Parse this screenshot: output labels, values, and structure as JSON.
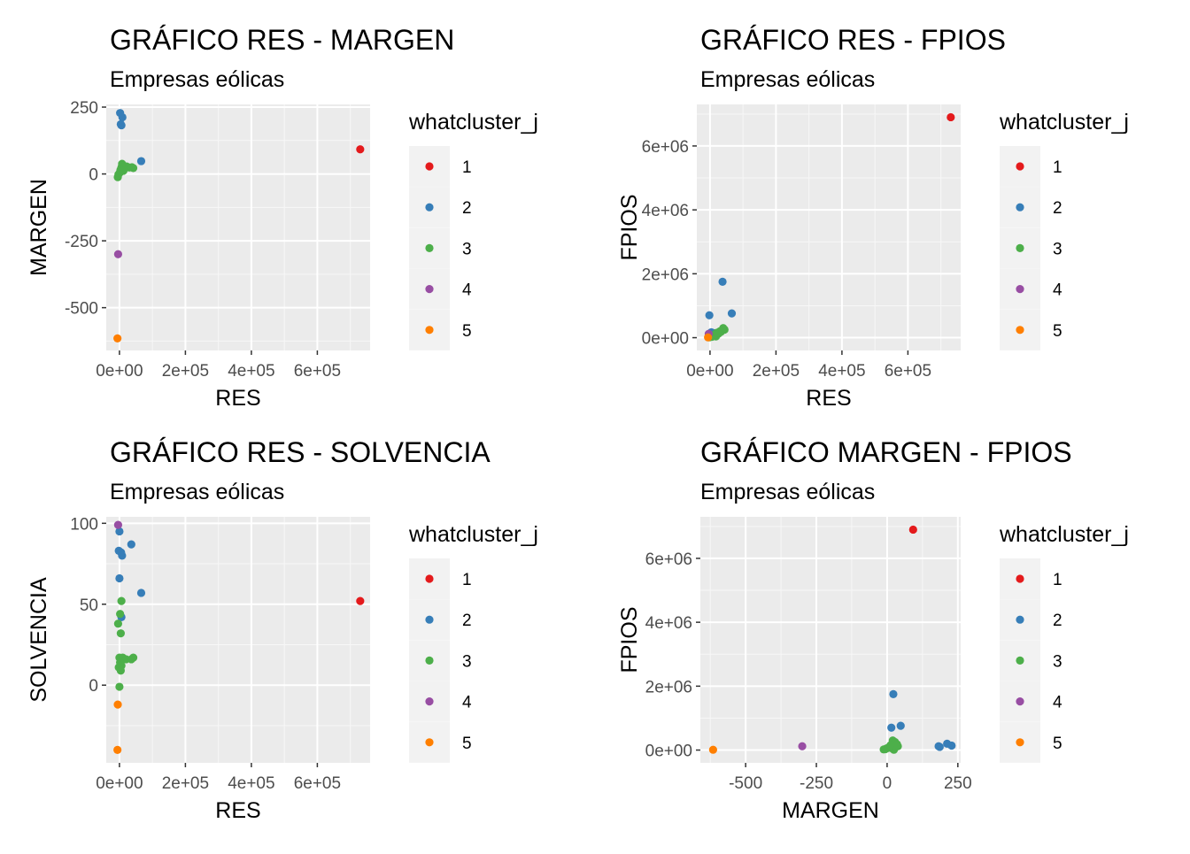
{
  "legend": {
    "title": "whatcluster_j",
    "entries": [
      {
        "label": "1",
        "color": "#E41A1C"
      },
      {
        "label": "2",
        "color": "#377EB8"
      },
      {
        "label": "3",
        "color": "#4DAF4A"
      },
      {
        "label": "4",
        "color": "#984EA3"
      },
      {
        "label": "5",
        "color": "#FF7F00"
      }
    ]
  },
  "chart_data": [
    {
      "type": "scatter",
      "title": "GRÁFICO RES - MARGEN",
      "subtitle": "Empresas eólicas",
      "xlabel": "RES",
      "ylabel": "MARGEN",
      "xlim": [
        -40000,
        760000
      ],
      "ylim": [
        -660,
        260
      ],
      "xticks": [
        {
          "value": 0,
          "label": "0e+00"
        },
        {
          "value": 200000,
          "label": "2e+05"
        },
        {
          "value": 400000,
          "label": "4e+05"
        },
        {
          "value": 600000,
          "label": "6e+05"
        }
      ],
      "yticks": [
        {
          "value": 250,
          "label": "250"
        },
        {
          "value": 0,
          "label": "0"
        },
        {
          "value": -250,
          "label": "-250"
        },
        {
          "value": -500,
          "label": "-500"
        }
      ],
      "grid": true,
      "legend_position": "right",
      "series": [
        {
          "name": "1",
          "color": "#E41A1C",
          "points": [
            [
              730000,
              92
            ]
          ]
        },
        {
          "name": "2",
          "color": "#377EB8",
          "points": [
            [
              2000,
              228
            ],
            [
              9000,
              212
            ],
            [
              4000,
              186
            ],
            [
              6000,
              182
            ],
            [
              66000,
              48
            ]
          ]
        },
        {
          "name": "3",
          "color": "#4DAF4A",
          "points": [
            [
              -5000,
              -12
            ],
            [
              -3000,
              -2
            ],
            [
              1000,
              5
            ],
            [
              3000,
              15
            ],
            [
              6000,
              25
            ],
            [
              8000,
              38
            ],
            [
              10000,
              30
            ],
            [
              15000,
              20
            ],
            [
              22000,
              28
            ],
            [
              30000,
              24
            ],
            [
              38000,
              25
            ],
            [
              42000,
              22
            ],
            [
              4000,
              8
            ],
            [
              12000,
              12
            ]
          ]
        },
        {
          "name": "4",
          "color": "#984EA3",
          "points": [
            [
              -4000,
              -300
            ]
          ]
        },
        {
          "name": "5",
          "color": "#FF7F00",
          "points": [
            [
              -6000,
              -615
            ]
          ]
        }
      ]
    },
    {
      "type": "scatter",
      "title": "GRÁFICO RES - FPIOS",
      "subtitle": "Empresas eólicas",
      "xlabel": "RES",
      "ylabel": "FPIOS",
      "xlim": [
        -40000,
        760000
      ],
      "ylim": [
        -400000,
        7300000
      ],
      "xticks": [
        {
          "value": 0,
          "label": "0e+00"
        },
        {
          "value": 200000,
          "label": "2e+05"
        },
        {
          "value": 400000,
          "label": "4e+05"
        },
        {
          "value": 600000,
          "label": "6e+05"
        }
      ],
      "yticks": [
        {
          "value": 0,
          "label": "0e+00"
        },
        {
          "value": 2000000,
          "label": "2e+06"
        },
        {
          "value": 4000000,
          "label": "4e+06"
        },
        {
          "value": 6000000,
          "label": "6e+06"
        }
      ],
      "grid": true,
      "legend_position": "right",
      "series": [
        {
          "name": "1",
          "color": "#E41A1C",
          "points": [
            [
              730000,
              6900000
            ]
          ]
        },
        {
          "name": "2",
          "color": "#377EB8",
          "points": [
            [
              38000,
              1750000
            ],
            [
              -2000,
              700000
            ],
            [
              66000,
              760000
            ],
            [
              4000,
              170000
            ],
            [
              12000,
              140000
            ],
            [
              8000,
              100000
            ]
          ]
        },
        {
          "name": "3",
          "color": "#4DAF4A",
          "points": [
            [
              -5000,
              20000
            ],
            [
              0,
              50000
            ],
            [
              3000,
              80000
            ],
            [
              10000,
              60000
            ],
            [
              18000,
              40000
            ],
            [
              25000,
              120000
            ],
            [
              30000,
              200000
            ],
            [
              40000,
              300000
            ],
            [
              44000,
              250000
            ],
            [
              -2000,
              10000
            ],
            [
              6000,
              30000
            ],
            [
              14000,
              90000
            ],
            [
              20000,
              150000
            ],
            [
              33000,
              180000
            ]
          ]
        },
        {
          "name": "4",
          "color": "#984EA3",
          "points": [
            [
              -4000,
              120000
            ]
          ]
        },
        {
          "name": "5",
          "color": "#FF7F00",
          "points": [
            [
              -6000,
              10000
            ]
          ]
        }
      ]
    },
    {
      "type": "scatter",
      "title": "GRÁFICO RES - SOLVENCIA",
      "subtitle": "Empresas eólicas",
      "xlabel": "RES",
      "ylabel": "SOLVENCIA",
      "xlim": [
        -40000,
        760000
      ],
      "ylim": [
        -48,
        104
      ],
      "xticks": [
        {
          "value": 0,
          "label": "0e+00"
        },
        {
          "value": 200000,
          "label": "2e+05"
        },
        {
          "value": 400000,
          "label": "4e+05"
        },
        {
          "value": 600000,
          "label": "6e+05"
        }
      ],
      "yticks": [
        {
          "value": 100,
          "label": "100"
        },
        {
          "value": 50,
          "label": "50"
        },
        {
          "value": 0,
          "label": "0"
        }
      ],
      "grid": true,
      "legend_position": "right",
      "series": [
        {
          "name": "1",
          "color": "#E41A1C",
          "points": [
            [
              730000,
              52
            ]
          ]
        },
        {
          "name": "2",
          "color": "#377EB8",
          "points": [
            [
              0,
              95
            ],
            [
              -2000,
              83
            ],
            [
              5000,
              82
            ],
            [
              8000,
              80
            ],
            [
              36000,
              87
            ],
            [
              0,
              66
            ],
            [
              66000,
              57
            ],
            [
              6000,
              42
            ]
          ]
        },
        {
          "name": "3",
          "color": "#4DAF4A",
          "points": [
            [
              6000,
              52
            ],
            [
              2000,
              44
            ],
            [
              -4000,
              38
            ],
            [
              4000,
              32
            ],
            [
              0,
              17
            ],
            [
              10000,
              17
            ],
            [
              20000,
              16
            ],
            [
              36000,
              16
            ],
            [
              42000,
              17
            ],
            [
              2000,
              14
            ],
            [
              -2000,
              11
            ],
            [
              6000,
              12
            ],
            [
              0,
              -1
            ],
            [
              4000,
              9
            ]
          ]
        },
        {
          "name": "4",
          "color": "#984EA3",
          "points": [
            [
              -4000,
              99
            ]
          ]
        },
        {
          "name": "5",
          "color": "#FF7F00",
          "points": [
            [
              -5000,
              -12
            ],
            [
              -6000,
              -40
            ]
          ]
        }
      ]
    },
    {
      "type": "scatter",
      "title": "GRÁFICO MARGEN - FPIOS",
      "subtitle": "Empresas eólicas",
      "xlabel": "MARGEN",
      "ylabel": "FPIOS",
      "xlim": [
        -660,
        260
      ],
      "ylim": [
        -400000,
        7300000
      ],
      "xticks": [
        {
          "value": -500,
          "label": "-500"
        },
        {
          "value": -250,
          "label": "-250"
        },
        {
          "value": 0,
          "label": "0"
        },
        {
          "value": 250,
          "label": "250"
        }
      ],
      "yticks": [
        {
          "value": 0,
          "label": "0e+00"
        },
        {
          "value": 2000000,
          "label": "2e+06"
        },
        {
          "value": 4000000,
          "label": "4e+06"
        },
        {
          "value": 6000000,
          "label": "6e+06"
        }
      ],
      "grid": true,
      "legend_position": "right",
      "series": [
        {
          "name": "1",
          "color": "#E41A1C",
          "points": [
            [
              92,
              6900000
            ]
          ]
        },
        {
          "name": "2",
          "color": "#377EB8",
          "points": [
            [
              22,
              1750000
            ],
            [
              48,
              760000
            ],
            [
              15,
              700000
            ],
            [
              186,
              100000
            ],
            [
              212,
              200000
            ],
            [
              228,
              140000
            ],
            [
              182,
              120000
            ]
          ]
        },
        {
          "name": "3",
          "color": "#4DAF4A",
          "points": [
            [
              -12,
              20000
            ],
            [
              -2,
              50000
            ],
            [
              5,
              80000
            ],
            [
              15,
              60000
            ],
            [
              25,
              40000
            ],
            [
              38,
              120000
            ],
            [
              30,
              200000
            ],
            [
              20,
              300000
            ],
            [
              28,
              250000
            ],
            [
              24,
              10000
            ],
            [
              -6,
              30000
            ],
            [
              8,
              90000
            ],
            [
              12,
              150000
            ],
            [
              35,
              180000
            ]
          ]
        },
        {
          "name": "4",
          "color": "#984EA3",
          "points": [
            [
              -300,
              120000
            ]
          ]
        },
        {
          "name": "5",
          "color": "#FF7F00",
          "points": [
            [
              -615,
              10000
            ]
          ]
        }
      ]
    }
  ]
}
